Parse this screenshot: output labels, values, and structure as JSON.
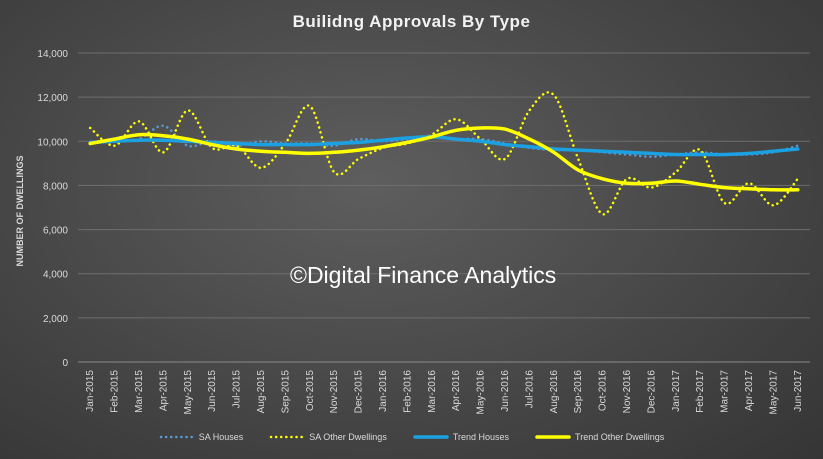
{
  "chart_data": {
    "type": "line",
    "title": "Builidng Approvals By Type",
    "xlabel": "",
    "ylabel": "NUMBER OF DWELLINGS",
    "ylim": [
      0,
      14000
    ],
    "yticks": [
      0,
      2000,
      4000,
      6000,
      8000,
      10000,
      12000,
      14000
    ],
    "ytick_labels": [
      "0",
      "2,000",
      "4,000",
      "6,000",
      "8,000",
      "10,000",
      "12,000",
      "14,000"
    ],
    "grid": true,
    "legend_position": "bottom",
    "categories": [
      "Jan-2015",
      "Feb-2015",
      "Mar-2015",
      "Apr-2015",
      "May-2015",
      "Jun-2015",
      "Jul-2015",
      "Aug-2015",
      "Sep-2015",
      "Oct-2015",
      "Nov-2015",
      "Dec-2015",
      "Jan-2016",
      "Feb-2016",
      "Mar-2016",
      "Apr-2016",
      "May-2016",
      "Jun-2016",
      "Jul-2016",
      "Aug-2016",
      "Sep-2016",
      "Oct-2016",
      "Nov-2016",
      "Dec-2016",
      "Jan-2017",
      "Feb-2017",
      "Mar-2017",
      "Apr-2017",
      "May-2017",
      "Jun-2017"
    ],
    "series": [
      {
        "name": "SA Houses",
        "style": "dotted",
        "color": "#5b9bd5",
        "values": [
          9900,
          10000,
          10100,
          10700,
          9800,
          10000,
          9800,
          10000,
          9900,
          9900,
          9800,
          10100,
          10000,
          10100,
          10200,
          10100,
          10100,
          9900,
          9700,
          9600,
          9600,
          9500,
          9400,
          9300,
          9400,
          9500,
          9400,
          9400,
          9500,
          9800
        ]
      },
      {
        "name": "SA Other Dwellings",
        "style": "dotted",
        "color": "#ffff00",
        "values": [
          10600,
          9800,
          10900,
          9500,
          11400,
          9700,
          9800,
          8800,
          9900,
          11600,
          8600,
          9200,
          9700,
          9900,
          10300,
          11000,
          10100,
          9200,
          11400,
          12100,
          9200,
          6700,
          8300,
          7900,
          8600,
          9600,
          7200,
          8100,
          7100,
          8300
        ]
      },
      {
        "name": "Trend Houses",
        "style": "solid",
        "color": "#1ba1e2",
        "values": [
          9950,
          10000,
          10050,
          10050,
          10000,
          9950,
          9900,
          9850,
          9850,
          9850,
          9900,
          9950,
          10050,
          10150,
          10200,
          10100,
          10000,
          9850,
          9750,
          9650,
          9600,
          9550,
          9500,
          9450,
          9400,
          9400,
          9400,
          9450,
          9550,
          9650
        ]
      },
      {
        "name": "Trend Other Dwellings",
        "style": "solid",
        "color": "#ffff00",
        "values": [
          9900,
          10100,
          10300,
          10250,
          10100,
          9850,
          9650,
          9550,
          9500,
          9450,
          9500,
          9600,
          9750,
          9950,
          10200,
          10500,
          10600,
          10550,
          10100,
          9500,
          8700,
          8300,
          8100,
          8100,
          8200,
          8050,
          7900,
          7850,
          7800,
          7800
        ]
      }
    ]
  },
  "watermark": "©Digital Finance Analytics"
}
